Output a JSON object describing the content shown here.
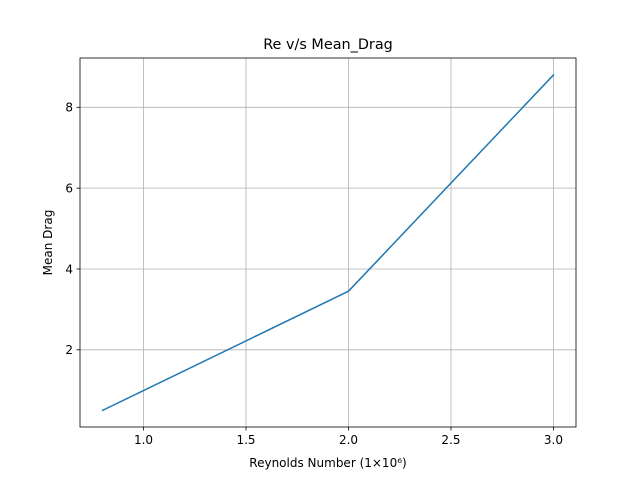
{
  "chart_data": {
    "type": "line",
    "title": "Re v/s Mean_Drag",
    "xlabel": "Reynolds Number (1×10⁶)",
    "ylabel": "Mean Drag",
    "xlim": [
      0.69,
      3.11
    ],
    "ylim": [
      0.09,
      9.22
    ],
    "xticks": [
      1.0,
      1.5,
      2.0,
      2.5,
      3.0
    ],
    "xtick_labels": [
      "1.0",
      "1.5",
      "2.0",
      "2.5",
      "3.0"
    ],
    "yticks": [
      2,
      4,
      6,
      8
    ],
    "ytick_labels": [
      "2",
      "4",
      "6",
      "8"
    ],
    "grid": true,
    "line_color": "#1f77b4",
    "series": [
      {
        "x": [
          0.8,
          2.0,
          3.0
        ],
        "y": [
          0.5,
          3.45,
          8.8
        ]
      }
    ]
  }
}
